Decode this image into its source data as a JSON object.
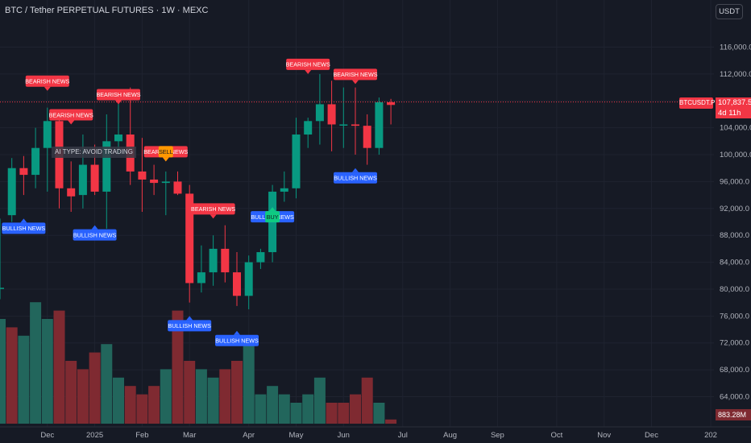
{
  "header": {
    "title": "BTC / Tether PERPETUAL FUTURES · 1W · MEXC"
  },
  "toolbar": {
    "currency_label": "USDT"
  },
  "price_scale": {
    "last_price": "107,837.5",
    "countdown": "4d 11h",
    "symbol_label": "BTCUSDT.P",
    "volume_label": "883.28M"
  },
  "annotation": {
    "avoid_label": "AI TYPE: AVOID TRADING"
  },
  "colors": {
    "up": "#089981",
    "down": "#f23645",
    "bull_badge": "#2962ff",
    "bear_badge": "#f23645",
    "buy_badge": "#0ecb81",
    "sell_badge": "#ff9800",
    "background": "#161a25"
  },
  "chart_data": {
    "type": "candlestick",
    "y_ticks": [
      "116,000.0",
      "112,000.0",
      "108,000.0",
      "104,000.0",
      "100,000.0",
      "96,000.0",
      "92,000.0",
      "88,000.0",
      "84,000.0",
      "80,000.0",
      "76,000.0",
      "72,000.0",
      "68,000.0",
      "64,000.0"
    ],
    "y_tick_values": [
      116000,
      112000,
      108000,
      104000,
      100000,
      96000,
      92000,
      88000,
      84000,
      80000,
      76000,
      72000,
      68000,
      64000
    ],
    "x_labels": [
      {
        "label": "Dec",
        "i": 4
      },
      {
        "label": "2025",
        "i": 8
      },
      {
        "label": "Feb",
        "i": 12
      },
      {
        "label": "Mar",
        "i": 16
      },
      {
        "label": "Apr",
        "i": 21
      },
      {
        "label": "May",
        "i": 25
      },
      {
        "label": "Jun",
        "i": 29
      },
      {
        "label": "Jul",
        "i": 34
      },
      {
        "label": "Aug",
        "i": 38
      },
      {
        "label": "Sep",
        "i": 42
      },
      {
        "label": "Oct",
        "i": 47
      },
      {
        "label": "Nov",
        "i": 51
      },
      {
        "label": "Dec",
        "i": 55
      },
      {
        "label": "202",
        "i": 60
      }
    ],
    "candles": [
      {
        "o": 80200,
        "h": 90500,
        "l": 78500,
        "c": 80200
      },
      {
        "o": 91000,
        "h": 99500,
        "l": 90000,
        "c": 98000
      },
      {
        "o": 98000,
        "h": 99800,
        "l": 94000,
        "c": 97000
      },
      {
        "o": 97000,
        "h": 104000,
        "l": 95000,
        "c": 101000
      },
      {
        "o": 101000,
        "h": 107000,
        "l": 94500,
        "c": 105000
      },
      {
        "o": 105000,
        "h": 106500,
        "l": 92000,
        "c": 95000
      },
      {
        "o": 95000,
        "h": 99000,
        "l": 91500,
        "c": 93800
      },
      {
        "o": 94000,
        "h": 103000,
        "l": 92000,
        "c": 98500
      },
      {
        "o": 98500,
        "h": 101500,
        "l": 94000,
        "c": 94500
      },
      {
        "o": 94500,
        "h": 106000,
        "l": 89000,
        "c": 102000
      },
      {
        "o": 102000,
        "h": 108000,
        "l": 100000,
        "c": 103000
      },
      {
        "o": 103000,
        "h": 110000,
        "l": 95500,
        "c": 97500
      },
      {
        "o": 97500,
        "h": 102500,
        "l": 91500,
        "c": 96300
      },
      {
        "o": 96300,
        "h": 98500,
        "l": 94000,
        "c": 95800
      },
      {
        "o": 95800,
        "h": 97500,
        "l": 91000,
        "c": 96000
      },
      {
        "o": 96000,
        "h": 97500,
        "l": 94000,
        "c": 94200
      },
      {
        "o": 94200,
        "h": 95500,
        "l": 78000,
        "c": 80900
      },
      {
        "o": 80900,
        "h": 86500,
        "l": 79500,
        "c": 82500
      },
      {
        "o": 82500,
        "h": 88000,
        "l": 80500,
        "c": 86000
      },
      {
        "o": 86000,
        "h": 89500,
        "l": 81000,
        "c": 82500
      },
      {
        "o": 82500,
        "h": 85500,
        "l": 77500,
        "c": 79000
      },
      {
        "o": 79000,
        "h": 85000,
        "l": 77000,
        "c": 84000
      },
      {
        "o": 84000,
        "h": 86000,
        "l": 83000,
        "c": 85500
      },
      {
        "o": 85500,
        "h": 95500,
        "l": 84000,
        "c": 94500
      },
      {
        "o": 94500,
        "h": 97500,
        "l": 93000,
        "c": 95000
      },
      {
        "o": 95000,
        "h": 105500,
        "l": 93500,
        "c": 103000
      },
      {
        "o": 103000,
        "h": 105500,
        "l": 101000,
        "c": 105000
      },
      {
        "o": 105000,
        "h": 112000,
        "l": 101500,
        "c": 107500
      },
      {
        "o": 107500,
        "h": 111000,
        "l": 100500,
        "c": 104500
      },
      {
        "o": 104500,
        "h": 110000,
        "l": 101000,
        "c": 104500
      },
      {
        "o": 104500,
        "h": 110000,
        "l": 100000,
        "c": 104300
      },
      {
        "o": 104300,
        "h": 106000,
        "l": 98500,
        "c": 101000
      },
      {
        "o": 101000,
        "h": 108500,
        "l": 100000,
        "c": 107800
      },
      {
        "o": 107800,
        "h": 108300,
        "l": 104500,
        "c": 107400
      }
    ],
    "volumes": [
      {
        "v": 74,
        "up": true
      },
      {
        "v": 73,
        "up": false
      },
      {
        "v": 72,
        "up": true
      },
      {
        "v": 76,
        "up": true
      },
      {
        "v": 74,
        "up": true
      },
      {
        "v": 75,
        "up": false
      },
      {
        "v": 69,
        "up": false
      },
      {
        "v": 68,
        "up": false
      },
      {
        "v": 70,
        "up": false
      },
      {
        "v": 71,
        "up": true
      },
      {
        "v": 67,
        "up": true
      },
      {
        "v": 66,
        "up": false
      },
      {
        "v": 65,
        "up": false
      },
      {
        "v": 66,
        "up": false
      },
      {
        "v": 68,
        "up": true
      },
      {
        "v": 75,
        "up": false
      },
      {
        "v": 69,
        "up": false
      },
      {
        "v": 68,
        "up": true
      },
      {
        "v": 67,
        "up": true
      },
      {
        "v": 68,
        "up": false
      },
      {
        "v": 69,
        "up": false
      },
      {
        "v": 72,
        "up": true
      },
      {
        "v": 65,
        "up": true
      },
      {
        "v": 66,
        "up": true
      },
      {
        "v": 65,
        "up": true
      },
      {
        "v": 64,
        "up": true
      },
      {
        "v": 65,
        "up": true
      },
      {
        "v": 67,
        "up": true
      },
      {
        "v": 64,
        "up": false
      },
      {
        "v": 64,
        "up": false
      },
      {
        "v": 65,
        "up": false
      },
      {
        "v": 67,
        "up": false
      },
      {
        "v": 64,
        "up": true
      },
      {
        "v": 62,
        "up": false
      }
    ],
    "signals": [
      {
        "text": "BULLISH NEWS",
        "type": "bull",
        "i": 2,
        "price": 90500
      },
      {
        "text": "BEARISH NEWS",
        "type": "bear",
        "i": 4,
        "price": 109500
      },
      {
        "text": "BEARISH NEWS",
        "type": "bear",
        "i": 6,
        "price": 104500
      },
      {
        "text": "BULLISH NEWS",
        "type": "bull",
        "i": 8,
        "price": 89500
      },
      {
        "text": "BEARISH NEWS",
        "type": "bear",
        "i": 10,
        "price": 107500
      },
      {
        "text": "BEARISH NEWS",
        "type": "bear",
        "i": 14,
        "price": 99000
      },
      {
        "text": "SELL",
        "type": "sell",
        "i": 14,
        "price": 99000
      },
      {
        "text": "BULLISH NEWS",
        "type": "bull",
        "i": 16,
        "price": 76000
      },
      {
        "text": "BEARISH NEWS",
        "type": "bear",
        "i": 18,
        "price": 90500
      },
      {
        "text": "BULLISH NEWS",
        "type": "bull",
        "i": 20,
        "price": 73800
      },
      {
        "text": "BULLISH NEWS",
        "type": "bull",
        "i": 23,
        "price": 92200
      },
      {
        "text": "BUY",
        "type": "buy",
        "i": 23,
        "price": 92200
      },
      {
        "text": "BEARISH NEWS",
        "type": "bear",
        "i": 26,
        "price": 112000
      },
      {
        "text": "BEARISH NEWS",
        "type": "bear",
        "i": 30,
        "price": 110500
      },
      {
        "text": "BULLISH NEWS",
        "type": "bull",
        "i": 30,
        "price": 98000
      }
    ],
    "last_price_value": 107837.5
  }
}
